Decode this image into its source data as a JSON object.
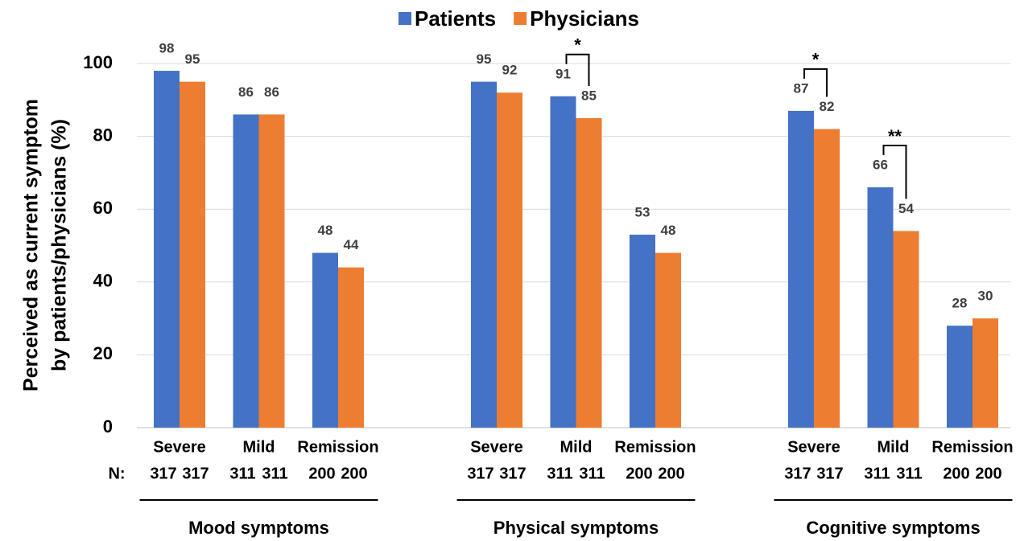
{
  "chart_data": {
    "type": "bar",
    "ylabel": [
      "Perceived as current symptom",
      "by patients/physicians (%)"
    ],
    "categories": [
      "Severe",
      "Mild",
      "Remission",
      "Severe",
      "Mild",
      "Remission",
      "Severe",
      "Mild",
      "Remission"
    ],
    "groups": [
      "Mood symptoms",
      "Physical symptoms",
      "Cognitive symptoms"
    ],
    "n_label": "N:",
    "series": [
      {
        "name": "Patients",
        "color": "#4472c4",
        "values": [
          98,
          86,
          48,
          95,
          91,
          53,
          87,
          66,
          28
        ],
        "n": [
          317,
          311,
          200,
          317,
          311,
          200,
          317,
          311,
          200
        ]
      },
      {
        "name": "Physicians",
        "color": "#ed7d31",
        "values": [
          95,
          86,
          44,
          92,
          85,
          48,
          82,
          54,
          30
        ],
        "n": [
          317,
          311,
          200,
          317,
          311,
          200,
          317,
          311,
          200
        ]
      }
    ],
    "annotations": [
      {
        "category": 4,
        "text": "*"
      },
      {
        "category": 6,
        "text": "*"
      },
      {
        "category": 7,
        "text": "**"
      }
    ],
    "ylim": [
      0,
      100
    ],
    "yticks": [
      0,
      20,
      40,
      60,
      80,
      100
    ],
    "grid": true,
    "legend": "top"
  }
}
